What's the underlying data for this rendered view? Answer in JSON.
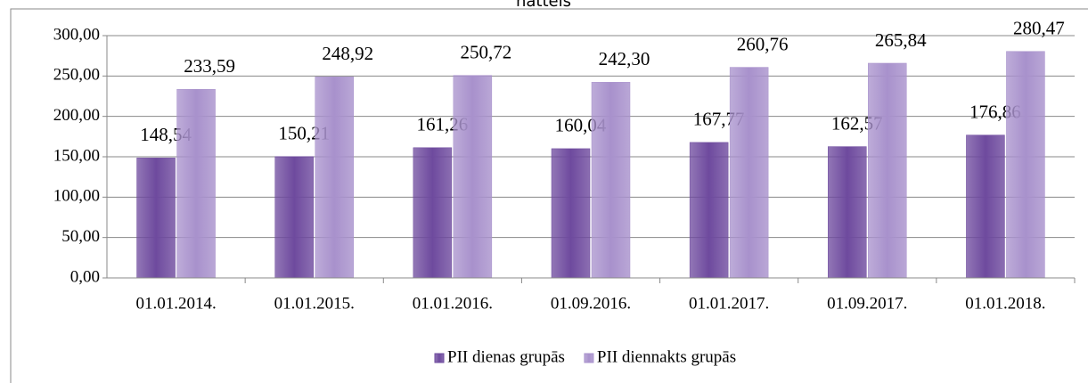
{
  "chart_data": {
    "type": "bar",
    "title": "nattels",
    "categories": [
      "01.01.2014.",
      "01.01.2015.",
      "01.01.2016.",
      "01.09.2016.",
      "01.01.2017.",
      "01.09.2017.",
      "01.01.2018."
    ],
    "series": [
      {
        "name": "PII dienas grupās",
        "color": "#6e4a9e",
        "values": [
          148.54,
          150.21,
          161.26,
          160.04,
          167.77,
          162.57,
          176.86
        ],
        "value_labels": [
          "148,54",
          "150,21",
          "161,26",
          "160,04",
          "167,77",
          "162,57",
          "176,86"
        ]
      },
      {
        "name": "PII diennakts grupās",
        "color": "#a891cc",
        "values": [
          233.59,
          248.92,
          250.72,
          242.3,
          260.76,
          265.84,
          280.47
        ],
        "value_labels": [
          "233,59",
          "248,92",
          "250,72",
          "242,30",
          "260,76",
          "265,84",
          "280,47"
        ]
      }
    ],
    "ylim": [
      0,
      300
    ],
    "yticks": [
      {
        "value": 0,
        "label": "0,00"
      },
      {
        "value": 50,
        "label": "50,00"
      },
      {
        "value": 100,
        "label": "100,00"
      },
      {
        "value": 150,
        "label": "150,00"
      },
      {
        "value": 200,
        "label": "200,00"
      },
      {
        "value": 250,
        "label": "250,00"
      },
      {
        "value": 300,
        "label": "300,00"
      }
    ],
    "grid": true,
    "legend": "bottom"
  }
}
